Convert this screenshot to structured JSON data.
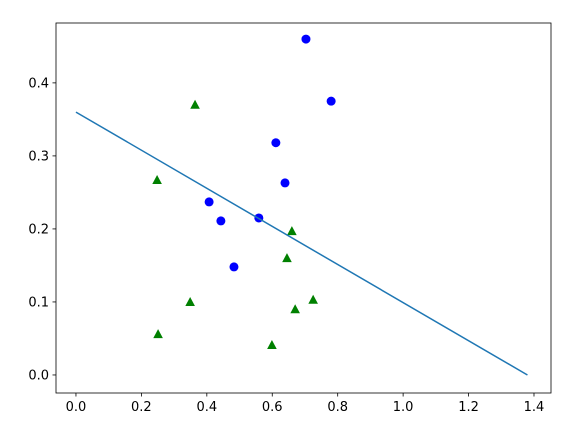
{
  "chart_data": {
    "type": "scatter",
    "series": [
      {
        "color": "#0000ff",
        "marker": "circle",
        "x": [
          0.703,
          0.78,
          0.611,
          0.639,
          0.407,
          0.443,
          0.559,
          0.483
        ],
        "values": [
          0.46,
          0.375,
          0.318,
          0.263,
          0.237,
          0.211,
          0.215,
          0.148
        ]
      },
      {
        "color": "#008000",
        "marker": "triangle",
        "x": [
          0.364,
          0.248,
          0.66,
          0.645,
          0.349,
          0.725,
          0.67,
          0.251,
          0.599
        ],
        "values": [
          0.37,
          0.267,
          0.197,
          0.16,
          0.1,
          0.103,
          0.09,
          0.056,
          0.041
        ]
      },
      {
        "color": "#1f77b4",
        "marker": "line",
        "x": [
          0,
          1.38
        ],
        "values": [
          0.36,
          0
        ]
      }
    ],
    "xlim": [
      -0.061,
      1.452
    ],
    "ylim": [
      -0.0247,
      0.482
    ],
    "xticks": [
      {
        "value": 0,
        "label": "0.0"
      },
      0.2,
      0.4,
      0.6,
      0.8,
      {
        "value": 1,
        "label": "1.0"
      },
      1.2,
      1.4
    ],
    "yticks": [
      {
        "value": 0,
        "label": "0.0"
      },
      0.1,
      0.2,
      0.3,
      0.4
    ],
    "grid": false
  }
}
